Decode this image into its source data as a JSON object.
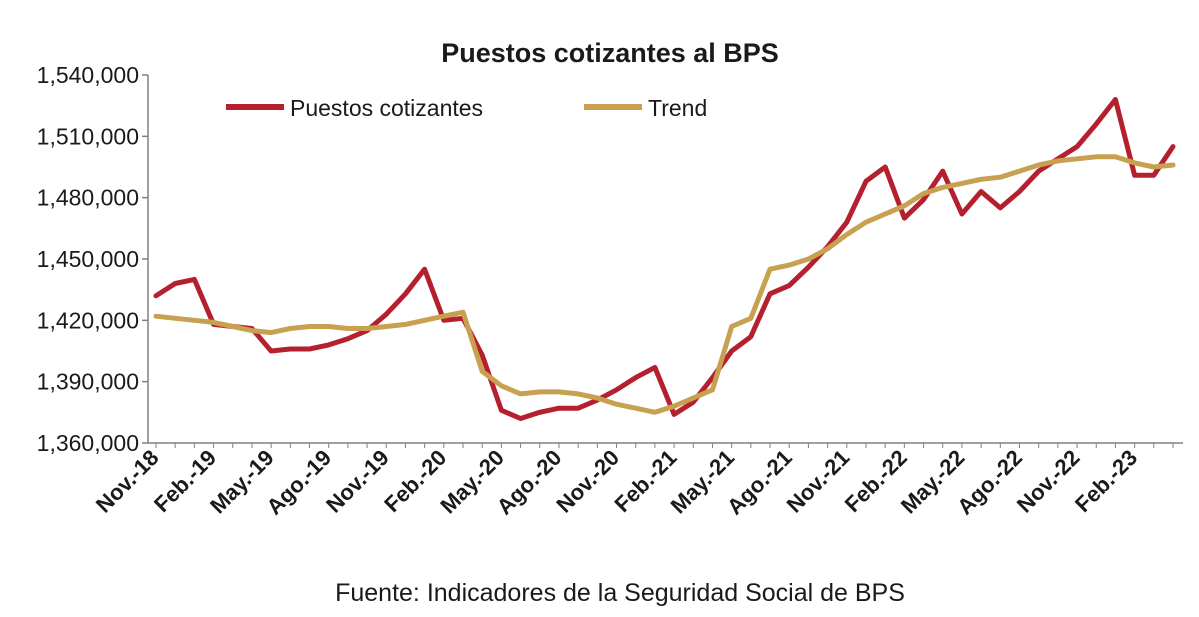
{
  "chart_data": {
    "type": "line",
    "title": "Puestos cotizantes al BPS",
    "source": "Fuente: Indicadores de la Seguridad Social de BPS",
    "ylim": [
      1360000,
      1540000
    ],
    "y_ticks": [
      1360000,
      1390000,
      1420000,
      1450000,
      1480000,
      1510000,
      1540000
    ],
    "y_tick_labels": [
      "1,360,000",
      "1,390,000",
      "1,420,000",
      "1,450,000",
      "1,480,000",
      "1,510,000",
      "1,540,000"
    ],
    "x_tick_labels": [
      "Nov.-18",
      "Feb.-19",
      "May.-19",
      "Ago.-19",
      "Nov.-19",
      "Feb.-20",
      "May.-20",
      "Ago.-20",
      "Nov.-20",
      "Feb.-21",
      "May.-21",
      "Ago.-21",
      "Nov.-21",
      "Feb.-22",
      "May.-22",
      "Ago.-22",
      "Nov.-22",
      "Feb.-23"
    ],
    "grid": false,
    "legend_position": "top-left",
    "series": [
      {
        "name": "Puestos cotizantes",
        "color": "#b5202e",
        "values": [
          1432000,
          1438000,
          1440000,
          1418000,
          1417000,
          1416000,
          1405000,
          1406000,
          1406000,
          1408000,
          1411000,
          1415000,
          1423000,
          1433000,
          1445000,
          1420000,
          1421000,
          1403000,
          1376000,
          1372000,
          1375000,
          1377000,
          1377000,
          1381000,
          1386000,
          1392000,
          1397000,
          1374000,
          1380000,
          1392000,
          1405000,
          1412000,
          1433000,
          1437000,
          1446000,
          1456000,
          1468000,
          1488000,
          1495000,
          1470000,
          1479000,
          1493000,
          1472000,
          1483000,
          1475000,
          1483000,
          1493000,
          1499000,
          1505000,
          1516000,
          1528000,
          1491000,
          1491000,
          1505000
        ]
      },
      {
        "name": "Trend",
        "color": "#c7a050",
        "values": [
          1422000,
          1421000,
          1420000,
          1419000,
          1417000,
          1415000,
          1414000,
          1416000,
          1417000,
          1417000,
          1416000,
          1416000,
          1417000,
          1418000,
          1420000,
          1422000,
          1424000,
          1395000,
          1388000,
          1384000,
          1385000,
          1385000,
          1384000,
          1382000,
          1379000,
          1377000,
          1375000,
          1378000,
          1382000,
          1386000,
          1417000,
          1421000,
          1445000,
          1447000,
          1450000,
          1455000,
          1462000,
          1468000,
          1472000,
          1476000,
          1482000,
          1485000,
          1487000,
          1489000,
          1490000,
          1493000,
          1496000,
          1498000,
          1499000,
          1500000,
          1500000,
          1497000,
          1495000,
          1496000
        ]
      }
    ]
  }
}
